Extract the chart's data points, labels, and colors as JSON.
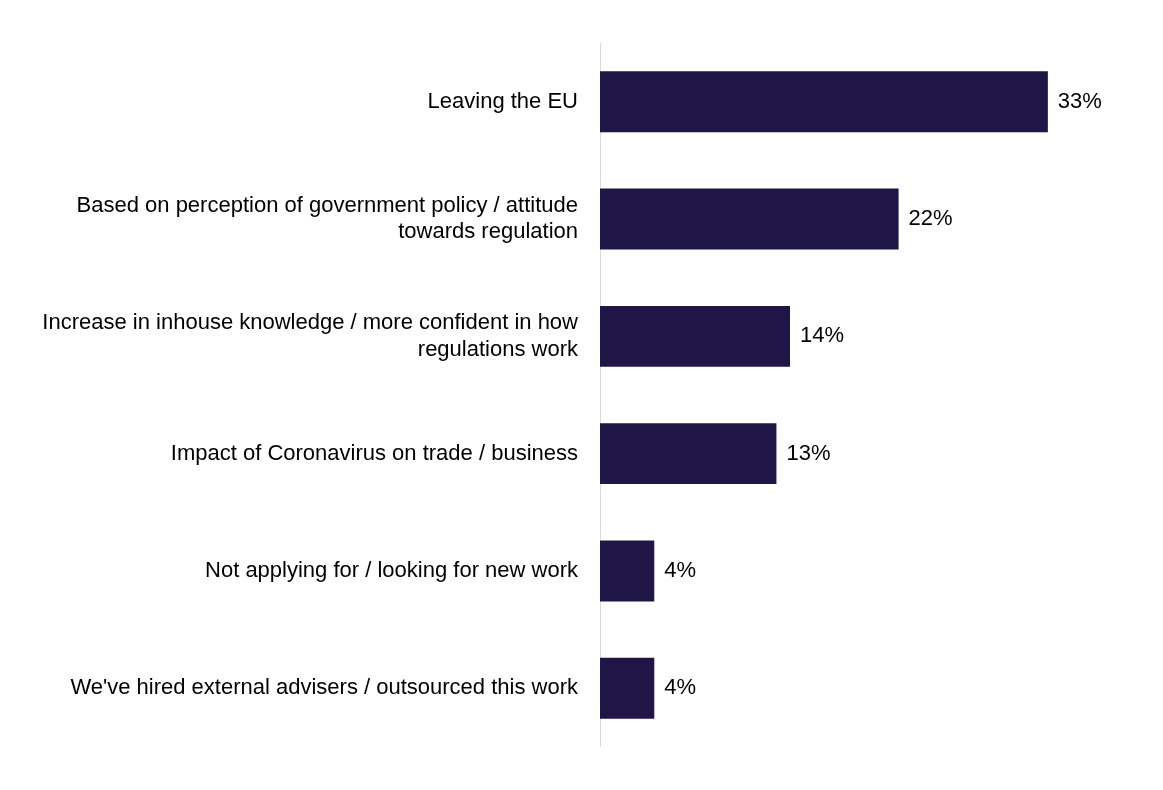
{
  "chart_data": {
    "type": "bar",
    "orientation": "horizontal",
    "categories": [
      "Leaving the EU",
      "Based on perception of government policy / attitude towards regulation",
      "Increase in inhouse knowledge / more confident in how regulations work",
      "Impact of Coronavirus on trade / business",
      "Not applying for / looking for new work",
      "We've hired external advisers / outsourced this work"
    ],
    "values": [
      33,
      22,
      14,
      13,
      4,
      4
    ],
    "value_labels": [
      "33%",
      "22%",
      "14%",
      "13%",
      "4%",
      "4%"
    ],
    "color": "#201547"
  }
}
